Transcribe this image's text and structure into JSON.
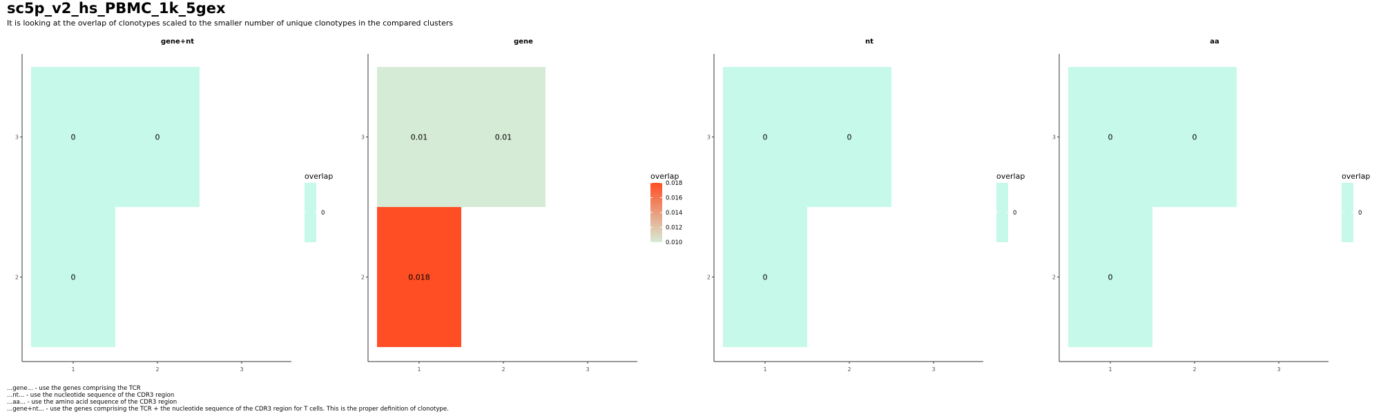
{
  "header": {
    "title": "sc5p_v2_hs_PBMC_1k_5gex",
    "subtitle": "It is looking at the overlap of clonotypes scaled to the smaller number of unique clonotypes in the compared clusters"
  },
  "footnotes": [
    "...gene... - use the genes comprising the TCR",
    "...nt... - use the nucleotide sequence of the CDR3 region",
    "...aa... - use the amino acid sequence of the CDR3 region",
    "...gene+nt... - use the genes comprising the TCR + the nucleotide sequence of the CDR3 region for T cells. This is the proper definition of clonotype."
  ],
  "colors": {
    "zero_fill": "#C6F9E9",
    "low_fill": "#D6EBD6",
    "high_fill": "#FF4E24",
    "axis": "#333333"
  },
  "chart_data": [
    {
      "type": "heatmap",
      "title": "gene+nt",
      "x_ticks": [
        "1",
        "2",
        "3"
      ],
      "y_ticks": [
        "2",
        "3"
      ],
      "cells": [
        {
          "x": 1,
          "y": 3,
          "value": 0,
          "label": "0"
        },
        {
          "x": 2,
          "y": 3,
          "value": 0,
          "label": "0"
        },
        {
          "x": 1,
          "y": 2,
          "value": 0,
          "label": "0"
        }
      ],
      "legend": {
        "title": "overlap",
        "type": "single",
        "labels": [
          "0"
        ]
      }
    },
    {
      "type": "heatmap",
      "title": "gene",
      "x_ticks": [
        "1",
        "2",
        "3"
      ],
      "y_ticks": [
        "2",
        "3"
      ],
      "cells": [
        {
          "x": 1,
          "y": 3,
          "value": 0.01,
          "label": "0.01"
        },
        {
          "x": 2,
          "y": 3,
          "value": 0.01,
          "label": "0.01"
        },
        {
          "x": 1,
          "y": 2,
          "value": 0.018,
          "label": "0.018"
        }
      ],
      "legend": {
        "title": "overlap",
        "type": "gradient",
        "labels": [
          "0.018",
          "0.016",
          "0.014",
          "0.012",
          "0.010"
        ],
        "min": 0.01,
        "max": 0.018
      }
    },
    {
      "type": "heatmap",
      "title": "nt",
      "x_ticks": [
        "1",
        "2",
        "3"
      ],
      "y_ticks": [
        "2",
        "3"
      ],
      "cells": [
        {
          "x": 1,
          "y": 3,
          "value": 0,
          "label": "0"
        },
        {
          "x": 2,
          "y": 3,
          "value": 0,
          "label": "0"
        },
        {
          "x": 1,
          "y": 2,
          "value": 0,
          "label": "0"
        }
      ],
      "legend": {
        "title": "overlap",
        "type": "single",
        "labels": [
          "0"
        ]
      }
    },
    {
      "type": "heatmap",
      "title": "aa",
      "x_ticks": [
        "1",
        "2",
        "3"
      ],
      "y_ticks": [
        "2",
        "3"
      ],
      "cells": [
        {
          "x": 1,
          "y": 3,
          "value": 0,
          "label": "0"
        },
        {
          "x": 2,
          "y": 3,
          "value": 0,
          "label": "0"
        },
        {
          "x": 1,
          "y": 2,
          "value": 0,
          "label": "0"
        }
      ],
      "legend": {
        "title": "overlap",
        "type": "single",
        "labels": [
          "0"
        ]
      }
    }
  ]
}
